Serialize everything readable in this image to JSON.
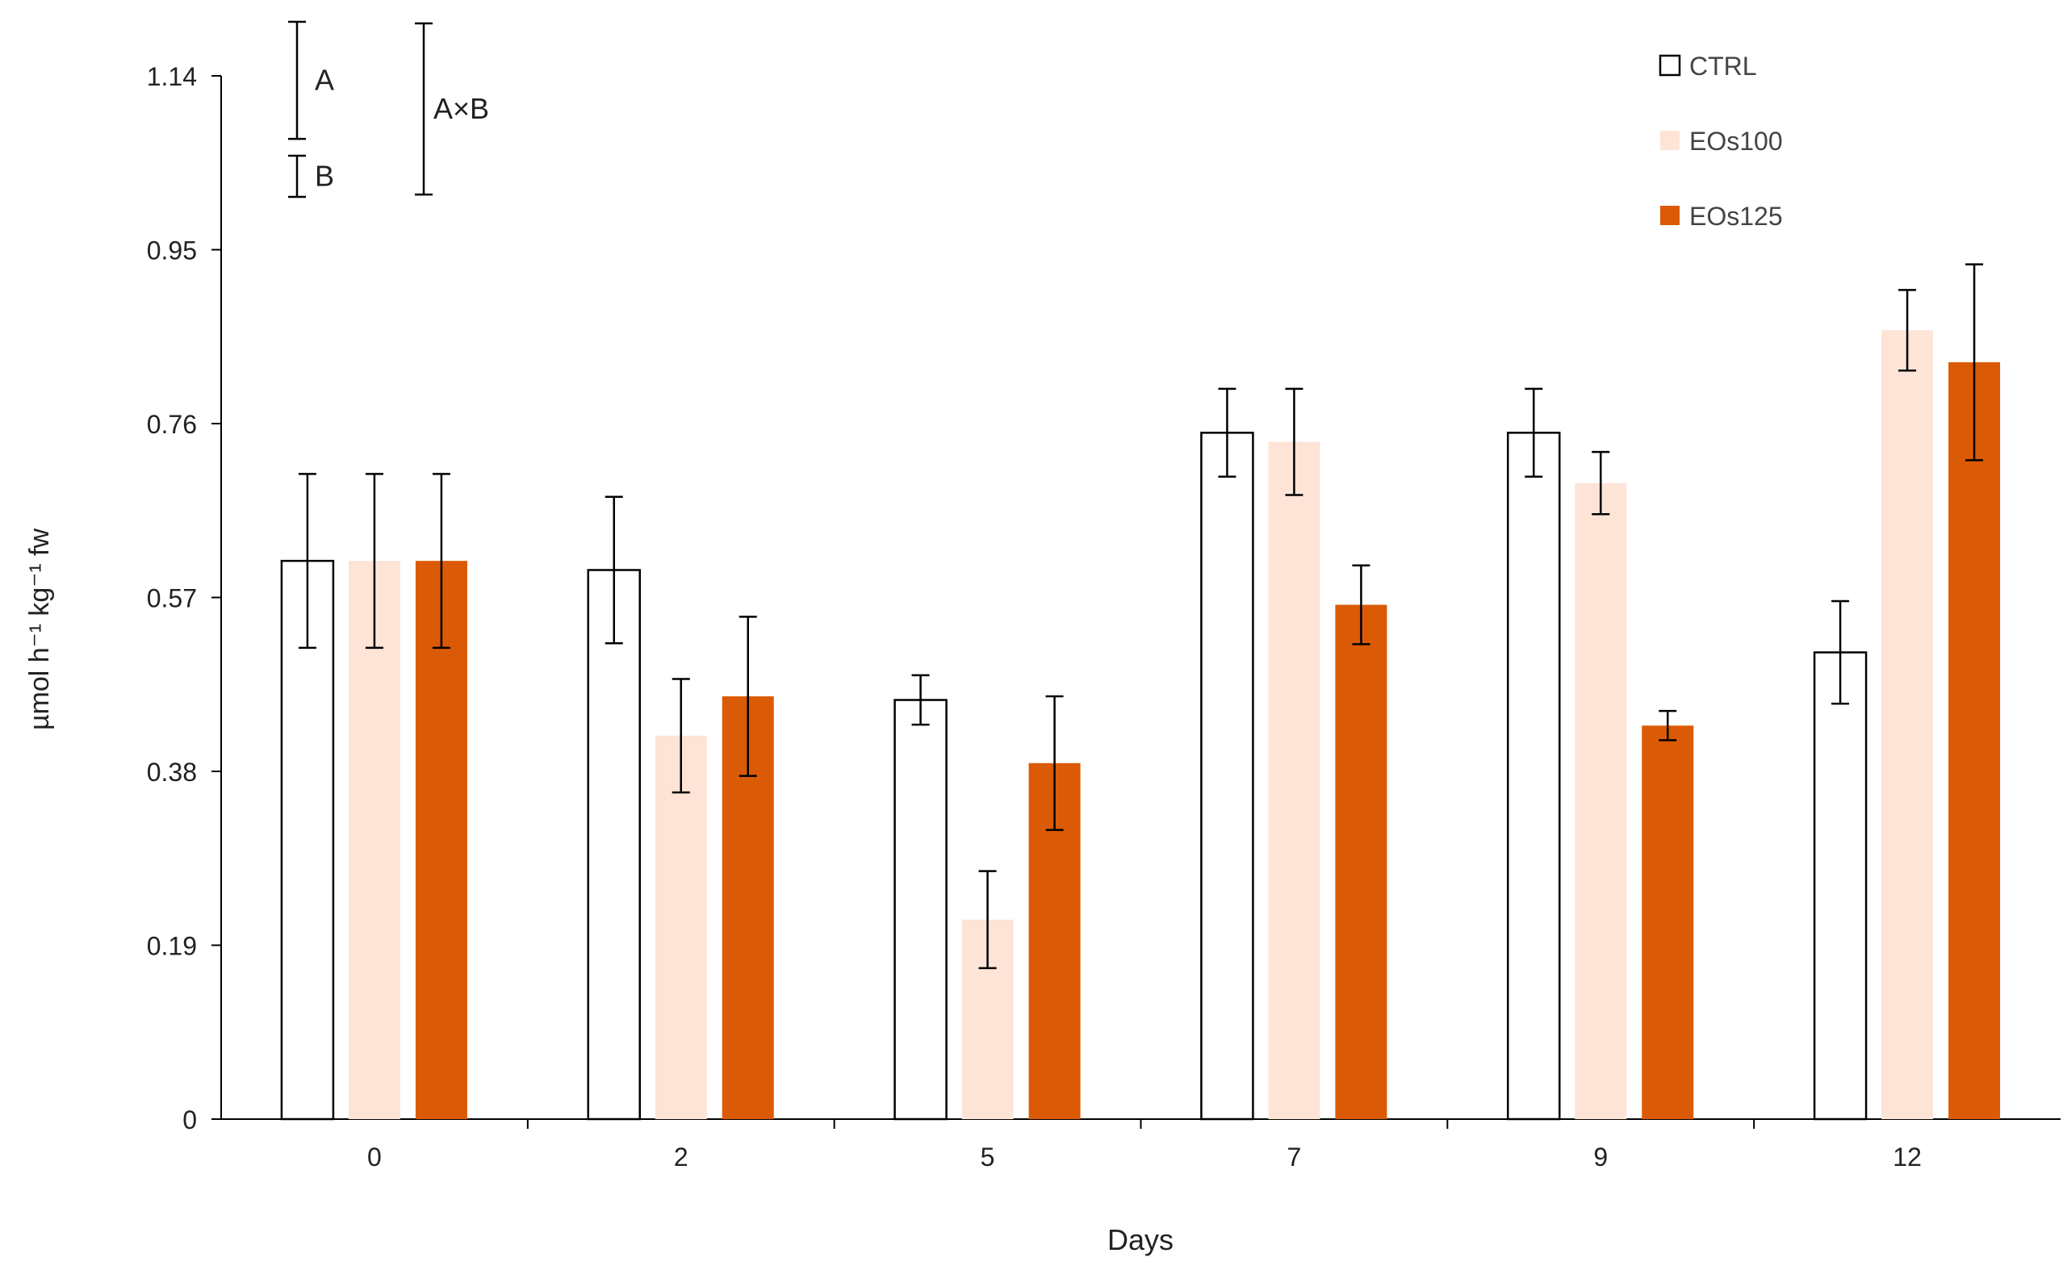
{
  "chart_data": {
    "type": "bar",
    "title": "",
    "xlabel": "Days",
    "ylabel": "µmol h⁻¹ kg⁻¹ fw",
    "ylim": [
      0,
      1.14
    ],
    "yticks": [
      0,
      0.19,
      0.38,
      0.57,
      0.76,
      0.95,
      1.14
    ],
    "ytick_labels": [
      "0",
      "0.19",
      "0.38",
      "0.57",
      "0.76",
      "0.95",
      "1.14"
    ],
    "categories": [
      "0",
      "2",
      "5",
      "7",
      "9",
      "12"
    ],
    "legend_position": "top-right",
    "grid": false,
    "series": [
      {
        "name": "CTRL",
        "fill": "#ffffff",
        "stroke": "#000000",
        "values": [
          0.61,
          0.6,
          0.458,
          0.75,
          0.75,
          0.51
        ],
        "errors": [
          0.095,
          0.08,
          0.027,
          0.048,
          0.048,
          0.056
        ]
      },
      {
        "name": "EOs100",
        "fill": "#fde4d6",
        "stroke": "none",
        "values": [
          0.61,
          0.419,
          0.218,
          0.74,
          0.695,
          0.862
        ],
        "errors": [
          0.095,
          0.062,
          0.053,
          0.058,
          0.034,
          0.044
        ]
      },
      {
        "name": "EOs125",
        "fill": "#db5a05",
        "stroke": "none",
        "values": [
          0.61,
          0.462,
          0.389,
          0.562,
          0.43,
          0.827
        ],
        "errors": [
          0.095,
          0.087,
          0.073,
          0.043,
          0.016,
          0.107
        ]
      }
    ],
    "significance_bars": [
      {
        "label": "A",
        "length": 0.128
      },
      {
        "label": "B",
        "length": 0.045
      },
      {
        "label": "A×B",
        "length": 0.187
      }
    ]
  }
}
